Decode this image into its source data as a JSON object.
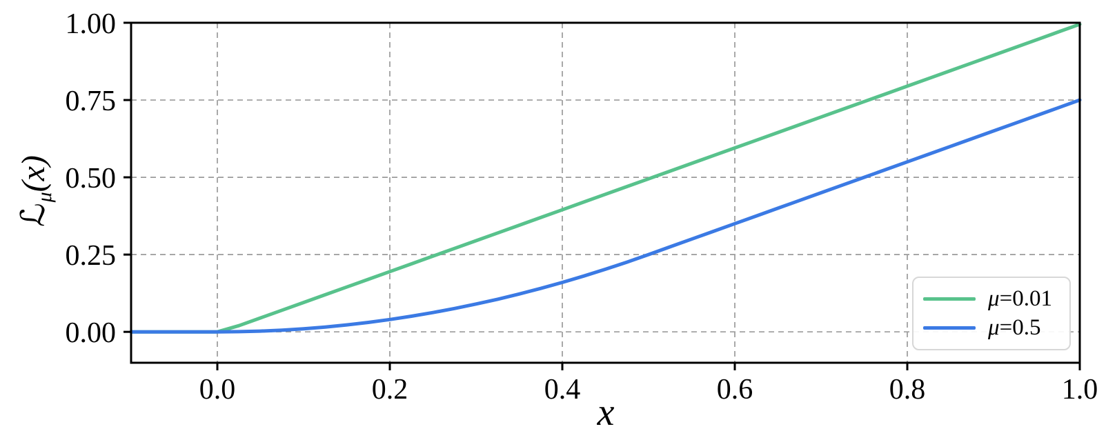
{
  "figure": {
    "background": "#ffffff",
    "xlabel": "x",
    "ylabel": {
      "main": "ℒ",
      "sub": "μ",
      "rest": "(x)"
    }
  },
  "chart_data": {
    "type": "line",
    "title": "",
    "xlabel": "x",
    "ylabel": "L_mu(x)",
    "xlim": [
      -0.1,
      1.0
    ],
    "ylim": [
      -0.1,
      1.0
    ],
    "grid": {
      "on": true,
      "color": "#9a9a9a",
      "style": "dashed"
    },
    "frame_color": "#000000",
    "legend_position": "lower right",
    "xticks": {
      "values": [
        0.0,
        0.2,
        0.4,
        0.6,
        0.8,
        1.0
      ],
      "labels": [
        "0.0",
        "0.2",
        "0.4",
        "0.6",
        "0.8",
        "1.0"
      ]
    },
    "yticks": {
      "values": [
        0.0,
        0.25,
        0.5,
        0.75,
        1.0
      ],
      "labels": [
        "0.00",
        "0.25",
        "0.50",
        "0.75",
        "1.00"
      ]
    },
    "x": [
      -0.1,
      -0.075,
      -0.05,
      -0.025,
      0,
      0.025,
      0.05,
      0.075,
      0.1,
      0.125,
      0.15,
      0.175,
      0.2,
      0.225,
      0.25,
      0.275,
      0.3,
      0.325,
      0.35,
      0.375,
      0.4,
      0.425,
      0.45,
      0.475,
      0.5,
      0.525,
      0.55,
      0.575,
      0.6,
      0.625,
      0.65,
      0.675,
      0.7,
      0.725,
      0.75,
      0.775,
      0.8,
      0.825,
      0.85,
      0.875,
      0.9,
      0.925,
      0.95,
      0.975,
      1.0
    ],
    "series": [
      {
        "label": "μ=0.01",
        "label_symbol": "μ",
        "label_eq": "=",
        "label_value": "0.01",
        "color": "#58c28c",
        "y": [
          0,
          0,
          0,
          0,
          0,
          0.02,
          0.045,
          0.07,
          0.095,
          0.12,
          0.145,
          0.17,
          0.195,
          0.22,
          0.245,
          0.27,
          0.295,
          0.32,
          0.345,
          0.37,
          0.395,
          0.42,
          0.445,
          0.47,
          0.495,
          0.52,
          0.545,
          0.57,
          0.595,
          0.62,
          0.645,
          0.67,
          0.695,
          0.72,
          0.745,
          0.77,
          0.795,
          0.82,
          0.845,
          0.87,
          0.895,
          0.92,
          0.945,
          0.97,
          0.995
        ]
      },
      {
        "label": "μ=0.5",
        "label_symbol": "μ",
        "label_eq": "=",
        "label_value": "0.5",
        "color": "#3b7ae4",
        "y": [
          0,
          0,
          0,
          0,
          0,
          0.0006,
          0.0025,
          0.0056,
          0.01,
          0.0156,
          0.0225,
          0.0306,
          0.04,
          0.0506,
          0.0625,
          0.0756,
          0.09,
          0.1056,
          0.1225,
          0.1406,
          0.16,
          0.1806,
          0.2025,
          0.2256,
          0.25,
          0.275,
          0.3,
          0.325,
          0.35,
          0.375,
          0.4,
          0.425,
          0.45,
          0.475,
          0.5,
          0.525,
          0.55,
          0.575,
          0.6,
          0.625,
          0.65,
          0.675,
          0.7,
          0.725,
          0.75
        ]
      }
    ]
  }
}
